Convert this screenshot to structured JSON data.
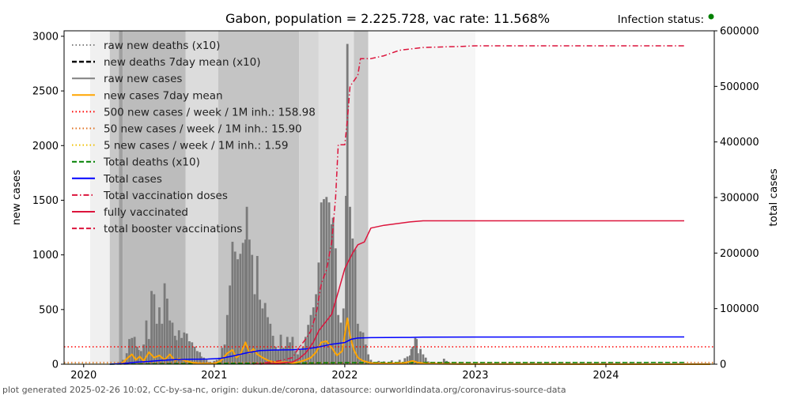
{
  "title": "Gabon, population = 2.225.728, vac rate: 11.568%",
  "status": {
    "label": "Infection status:",
    "dot_color": "#008000"
  },
  "footer": "plot generated 2025-02-26 10:02, CC-by-sa-nc, origin: dukun.de/corona, datasource: ourworldindata.org/coronavirus-source-data",
  "chart_data": {
    "type": "line",
    "title": "Gabon, population = 2.225.728, vac rate: 11.568%",
    "xlabel": "",
    "ylabel": "new cases",
    "y2label": "total cases",
    "xlim": [
      2019.85,
      2024.83
    ],
    "ylim": [
      0,
      3050
    ],
    "y2lim": [
      0,
      600000
    ],
    "x_ticks": [
      2020,
      2021,
      2022,
      2023,
      2024
    ],
    "y_ticks": [
      0,
      500,
      1000,
      1500,
      2000,
      2500,
      3000
    ],
    "y2_ticks": [
      0,
      100000,
      200000,
      300000,
      400000,
      500000,
      600000
    ],
    "legend_position": "upper left",
    "legend": [
      {
        "label": "raw new deaths (x10)",
        "color": "#808080",
        "style": "dotted"
      },
      {
        "label": "new deaths 7day mean (x10)",
        "color": "#000000",
        "style": "dashed"
      },
      {
        "label": "raw new cases",
        "color": "#808080",
        "style": "solid"
      },
      {
        "label": "new cases 7day mean",
        "color": "#ffa500",
        "style": "solid"
      },
      {
        "label": "500 new cases / week / 1M inh.: 158.98",
        "color": "#ff0000",
        "style": "dotted"
      },
      {
        "label": "50 new cases / week / 1M inh.: 15.90",
        "color": "#e07020",
        "style": "dotted"
      },
      {
        "label": "5 new cases / week / 1M inh.: 1.59",
        "color": "#f0c000",
        "style": "dotted"
      },
      {
        "label": "Total deaths (x10)",
        "color": "#008000",
        "style": "dashed"
      },
      {
        "label": "Total cases",
        "color": "#0000ff",
        "style": "solid"
      },
      {
        "label": "Total vaccination doses",
        "color": "#dc143c",
        "style": "dashdot"
      },
      {
        "label": "fully vaccinated",
        "color": "#dc143c",
        "style": "solid"
      },
      {
        "label": "total booster vaccinations",
        "color": "#dc143c",
        "style": "dashed"
      }
    ],
    "thresholds": [
      {
        "value": 158.98,
        "color": "#ff0000"
      },
      {
        "value": 15.9,
        "color": "#e07020"
      },
      {
        "value": 1.59,
        "color": "#f0c000"
      }
    ],
    "background_bands": [
      {
        "x0": 2020.05,
        "x1": 2020.2,
        "shade": "#f0f0f0"
      },
      {
        "x0": 2020.2,
        "x1": 2020.27,
        "shade": "#c8c8c8"
      },
      {
        "x0": 2020.27,
        "x1": 2020.3,
        "shade": "#a0a0a0"
      },
      {
        "x0": 2020.3,
        "x1": 2020.78,
        "shade": "#bcbcbc"
      },
      {
        "x0": 2020.78,
        "x1": 2021.03,
        "shade": "#dcdcdc"
      },
      {
        "x0": 2021.03,
        "x1": 2021.65,
        "shade": "#c4c4c4"
      },
      {
        "x0": 2021.65,
        "x1": 2021.8,
        "shade": "#d6d6d6"
      },
      {
        "x0": 2021.8,
        "x1": 2022.07,
        "shade": "#e2e2e2"
      },
      {
        "x0": 2022.07,
        "x1": 2022.18,
        "shade": "#c8c8c8"
      },
      {
        "x0": 2022.18,
        "x1": 2023.0,
        "shade": "#f6f6f6"
      }
    ],
    "raw_new_cases": [
      [
        2020.28,
        20
      ],
      [
        2020.3,
        40
      ],
      [
        2020.33,
        100
      ],
      [
        2020.35,
        230
      ],
      [
        2020.37,
        240
      ],
      [
        2020.39,
        250
      ],
      [
        2020.41,
        160
      ],
      [
        2020.42,
        130
      ],
      [
        2020.44,
        120
      ],
      [
        2020.46,
        180
      ],
      [
        2020.48,
        400
      ],
      [
        2020.5,
        230
      ],
      [
        2020.52,
        670
      ],
      [
        2020.54,
        640
      ],
      [
        2020.56,
        370
      ],
      [
        2020.58,
        520
      ],
      [
        2020.6,
        370
      ],
      [
        2020.62,
        740
      ],
      [
        2020.64,
        600
      ],
      [
        2020.66,
        400
      ],
      [
        2020.68,
        380
      ],
      [
        2020.7,
        260
      ],
      [
        2020.71,
        220
      ],
      [
        2020.73,
        310
      ],
      [
        2020.75,
        240
      ],
      [
        2020.77,
        290
      ],
      [
        2020.79,
        280
      ],
      [
        2020.81,
        210
      ],
      [
        2020.83,
        200
      ],
      [
        2020.85,
        160
      ],
      [
        2020.87,
        120
      ],
      [
        2020.89,
        110
      ],
      [
        2020.9,
        70
      ],
      [
        2020.92,
        60
      ],
      [
        2020.94,
        40
      ],
      [
        2020.96,
        20
      ],
      [
        2020.98,
        10
      ],
      [
        2021.0,
        30
      ],
      [
        2021.02,
        40
      ],
      [
        2021.04,
        60
      ],
      [
        2021.06,
        150
      ],
      [
        2021.08,
        180
      ],
      [
        2021.1,
        450
      ],
      [
        2021.12,
        720
      ],
      [
        2021.14,
        1120
      ],
      [
        2021.16,
        1030
      ],
      [
        2021.18,
        960
      ],
      [
        2021.2,
        1010
      ],
      [
        2021.22,
        1110
      ],
      [
        2021.24,
        1140
      ],
      [
        2021.25,
        1440
      ],
      [
        2021.27,
        1140
      ],
      [
        2021.29,
        1000
      ],
      [
        2021.31,
        640
      ],
      [
        2021.33,
        990
      ],
      [
        2021.35,
        590
      ],
      [
        2021.37,
        510
      ],
      [
        2021.39,
        560
      ],
      [
        2021.41,
        430
      ],
      [
        2021.43,
        370
      ],
      [
        2021.45,
        260
      ],
      [
        2021.47,
        160
      ],
      [
        2021.49,
        130
      ],
      [
        2021.51,
        270
      ],
      [
        2021.53,
        150
      ],
      [
        2021.55,
        160
      ],
      [
        2021.56,
        250
      ],
      [
        2021.58,
        200
      ],
      [
        2021.6,
        250
      ],
      [
        2021.62,
        120
      ],
      [
        2021.64,
        90
      ],
      [
        2021.66,
        130
      ],
      [
        2021.68,
        160
      ],
      [
        2021.7,
        250
      ],
      [
        2021.72,
        360
      ],
      [
        2021.74,
        450
      ],
      [
        2021.76,
        520
      ],
      [
        2021.78,
        640
      ],
      [
        2021.8,
        930
      ],
      [
        2021.82,
        1480
      ],
      [
        2021.84,
        1510
      ],
      [
        2021.86,
        1530
      ],
      [
        2021.88,
        1480
      ],
      [
        2021.9,
        1280
      ],
      [
        2021.91,
        1340
      ],
      [
        2021.93,
        1060
      ],
      [
        2021.95,
        450
      ],
      [
        2021.97,
        380
      ],
      [
        2021.99,
        510
      ],
      [
        2022.01,
        1540
      ],
      [
        2022.02,
        2930
      ],
      [
        2022.04,
        1440
      ],
      [
        2022.06,
        1150
      ],
      [
        2022.08,
        1050
      ],
      [
        2022.1,
        370
      ],
      [
        2022.12,
        300
      ],
      [
        2022.14,
        290
      ],
      [
        2022.16,
        180
      ],
      [
        2022.18,
        90
      ],
      [
        2022.2,
        40
      ],
      [
        2022.22,
        20
      ],
      [
        2022.26,
        30
      ],
      [
        2022.3,
        25
      ],
      [
        2022.36,
        35
      ],
      [
        2022.42,
        40
      ],
      [
        2022.46,
        55
      ],
      [
        2022.48,
        70
      ],
      [
        2022.5,
        80
      ],
      [
        2022.51,
        140
      ],
      [
        2022.52,
        160
      ],
      [
        2022.54,
        240
      ],
      [
        2022.55,
        230
      ],
      [
        2022.56,
        100
      ],
      [
        2022.58,
        140
      ],
      [
        2022.6,
        90
      ],
      [
        2022.62,
        60
      ],
      [
        2022.64,
        25
      ],
      [
        2022.68,
        15
      ],
      [
        2022.72,
        10
      ],
      [
        2022.76,
        50
      ],
      [
        2022.78,
        30
      ],
      [
        2022.8,
        15
      ],
      [
        2022.85,
        5
      ],
      [
        2022.95,
        3
      ],
      [
        2023.05,
        2
      ]
    ],
    "new_cases_7day_mean": [
      [
        2020.28,
        0
      ],
      [
        2020.3,
        15
      ],
      [
        2020.33,
        50
      ],
      [
        2020.37,
        90
      ],
      [
        2020.4,
        40
      ],
      [
        2020.43,
        70
      ],
      [
        2020.46,
        30
      ],
      [
        2020.5,
        110
      ],
      [
        2020.54,
        60
      ],
      [
        2020.58,
        80
      ],
      [
        2020.62,
        40
      ],
      [
        2020.66,
        90
      ],
      [
        2020.7,
        30
      ],
      [
        2020.73,
        50
      ],
      [
        2020.78,
        30
      ],
      [
        2020.83,
        15
      ],
      [
        2020.9,
        5
      ],
      [
        2021.0,
        5
      ],
      [
        2021.05,
        30
      ],
      [
        2021.1,
        100
      ],
      [
        2021.14,
        130
      ],
      [
        2021.17,
        60
      ],
      [
        2021.2,
        90
      ],
      [
        2021.24,
        200
      ],
      [
        2021.27,
        100
      ],
      [
        2021.3,
        140
      ],
      [
        2021.33,
        90
      ],
      [
        2021.37,
        60
      ],
      [
        2021.42,
        30
      ],
      [
        2021.48,
        15
      ],
      [
        2021.55,
        20
      ],
      [
        2021.6,
        10
      ],
      [
        2021.65,
        20
      ],
      [
        2021.7,
        40
      ],
      [
        2021.74,
        60
      ],
      [
        2021.78,
        110
      ],
      [
        2021.82,
        200
      ],
      [
        2021.86,
        210
      ],
      [
        2021.9,
        150
      ],
      [
        2021.94,
        80
      ],
      [
        2021.98,
        120
      ],
      [
        2022.02,
        420
      ],
      [
        2022.04,
        260
      ],
      [
        2022.07,
        130
      ],
      [
        2022.1,
        60
      ],
      [
        2022.14,
        30
      ],
      [
        2022.2,
        10
      ],
      [
        2022.3,
        5
      ],
      [
        2022.45,
        10
      ],
      [
        2022.52,
        30
      ],
      [
        2022.56,
        15
      ],
      [
        2022.62,
        5
      ],
      [
        2022.75,
        3
      ],
      [
        2022.9,
        1
      ],
      [
        2024.8,
        0
      ]
    ],
    "total_cases": [
      [
        2020.2,
        0
      ],
      [
        2020.3,
        1000
      ],
      [
        2020.4,
        3500
      ],
      [
        2020.5,
        5000
      ],
      [
        2020.6,
        7000
      ],
      [
        2020.7,
        8300
      ],
      [
        2020.8,
        8800
      ],
      [
        2020.95,
        9200
      ],
      [
        2021.05,
        10500
      ],
      [
        2021.15,
        15000
      ],
      [
        2021.25,
        20500
      ],
      [
        2021.35,
        24500
      ],
      [
        2021.45,
        25500
      ],
      [
        2021.6,
        26000
      ],
      [
        2021.7,
        27500
      ],
      [
        2021.8,
        31000
      ],
      [
        2021.9,
        36000
      ],
      [
        2022.0,
        39000
      ],
      [
        2022.05,
        45000
      ],
      [
        2022.1,
        47000
      ],
      [
        2022.2,
        47800
      ],
      [
        2022.5,
        48200
      ],
      [
        2022.6,
        48800
      ],
      [
        2023.0,
        48900
      ],
      [
        2024.6,
        49000
      ]
    ],
    "total_deaths_x10": [
      [
        2020.2,
        0
      ],
      [
        2020.5,
        500
      ],
      [
        2021.0,
        1500
      ],
      [
        2021.5,
        1800
      ],
      [
        2022.0,
        2800
      ],
      [
        2022.2,
        3000
      ],
      [
        2024.6,
        3060
      ]
    ],
    "total_vaccination_doses": [
      [
        2021.3,
        0
      ],
      [
        2021.4,
        3000
      ],
      [
        2021.5,
        6000
      ],
      [
        2021.6,
        12000
      ],
      [
        2021.65,
        30000
      ],
      [
        2021.7,
        45000
      ],
      [
        2021.74,
        60000
      ],
      [
        2021.78,
        90000
      ],
      [
        2021.82,
        145000
      ],
      [
        2021.86,
        170000
      ],
      [
        2021.9,
        220000
      ],
      [
        2021.93,
        300000
      ],
      [
        2021.95,
        395000
      ],
      [
        2022.0,
        395000
      ],
      [
        2022.02,
        440000
      ],
      [
        2022.04,
        500000
      ],
      [
        2022.1,
        520000
      ],
      [
        2022.12,
        550000
      ],
      [
        2022.2,
        550000
      ],
      [
        2022.3,
        555000
      ],
      [
        2022.42,
        565000
      ],
      [
        2022.6,
        570000
      ],
      [
        2022.9,
        572000
      ],
      [
        2023.0,
        573000
      ],
      [
        2024.6,
        573000
      ]
    ],
    "fully_vaccinated": [
      [
        2021.35,
        0
      ],
      [
        2021.5,
        2000
      ],
      [
        2021.6,
        4000
      ],
      [
        2021.65,
        10000
      ],
      [
        2021.7,
        20000
      ],
      [
        2021.76,
        40000
      ],
      [
        2021.8,
        60000
      ],
      [
        2021.85,
        75000
      ],
      [
        2021.9,
        90000
      ],
      [
        2021.95,
        130000
      ],
      [
        2022.0,
        172000
      ],
      [
        2022.06,
        200000
      ],
      [
        2022.1,
        215000
      ],
      [
        2022.15,
        220000
      ],
      [
        2022.2,
        245000
      ],
      [
        2022.3,
        250000
      ],
      [
        2022.5,
        256000
      ],
      [
        2022.6,
        258000
      ],
      [
        2024.6,
        258000
      ]
    ]
  }
}
